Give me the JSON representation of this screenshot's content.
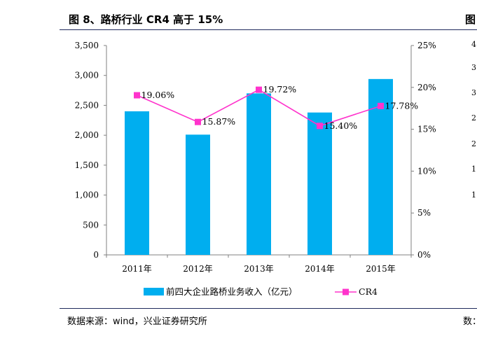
{
  "figure": {
    "title": "图 8、路桥行业 CR4 高于 15%",
    "title_right_clip": "图",
    "source": "数据来源：wind，兴业证券研究所",
    "source_right_clip": "数："
  },
  "colors": {
    "bar": "#00AEEF",
    "line": "#FF33CC",
    "axis": "#808080",
    "rule": "#1f2a5c"
  },
  "chart_data": {
    "type": "bar",
    "categories": [
      "2011年",
      "2012年",
      "2013年",
      "2014年",
      "2015年"
    ],
    "series": [
      {
        "name": "前四大企业路桥业务收入（亿元）",
        "type": "bar",
        "axis": "left",
        "values": [
          2400,
          2010,
          2700,
          2380,
          2940
        ]
      },
      {
        "name": "CR4",
        "type": "line",
        "axis": "right",
        "values": [
          19.06,
          15.87,
          19.72,
          15.4,
          17.78
        ],
        "labels": [
          "19.06%",
          "15.87%",
          "19.72%",
          "15.40%",
          "17.78%"
        ]
      }
    ],
    "y_left": {
      "min": 0,
      "max": 3500,
      "ticks": [
        "0",
        "500",
        "1,000",
        "1,500",
        "2,000",
        "2,500",
        "3,000",
        "3,500"
      ]
    },
    "y_right": {
      "min": 0,
      "max": 25,
      "ticks": [
        "0%",
        "5%",
        "10%",
        "15%",
        "20%",
        "25%"
      ]
    },
    "legend": {
      "position": "bottom"
    },
    "grid": false
  },
  "clipped_right_ticks": [
    "4",
    "3",
    "3",
    "2",
    "2",
    "1",
    "1"
  ]
}
